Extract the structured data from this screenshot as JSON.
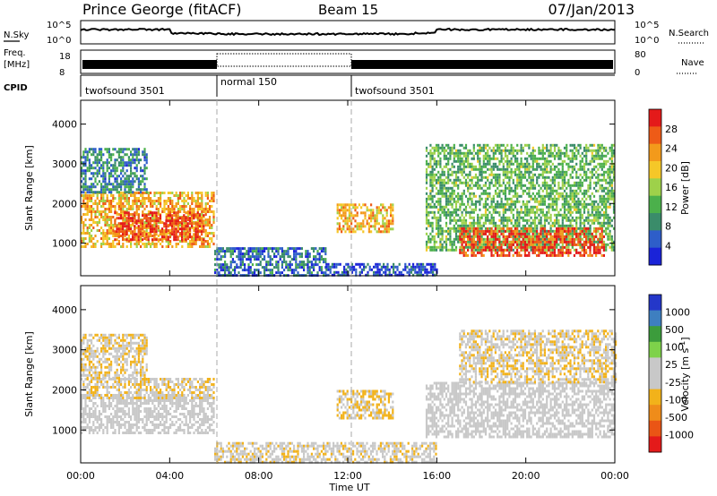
{
  "header": {
    "title": "Prince George (fitACF)",
    "beam": "Beam 15",
    "date": "07/Jan/2013"
  },
  "top_panels": {
    "nsky_label": "N.Sky",
    "nsky_tick_top": "10^5",
    "nsky_tick_bottom": "10^0",
    "nsearch_label": "N.Search",
    "freq_label_line1": "Freq.",
    "freq_label_line2": "[MHz]",
    "freq_ticks": [
      "18",
      "8"
    ],
    "nave_label": "Nave",
    "nave_ticks": [
      "80",
      "0"
    ],
    "cpid_label": "CPID",
    "cpid_segments": [
      {
        "label": "twofsound 3501",
        "start_hour": 0,
        "end_hour": 6
      },
      {
        "label": "normal 150",
        "start_hour": 6,
        "end_hour": 12
      },
      {
        "label": "twofsound 3501",
        "start_hour": 12,
        "end_hour": 24
      }
    ]
  },
  "colors": {
    "power": [
      "#1a23d8",
      "#2e5ec9",
      "#3a8c6a",
      "#4bb04b",
      "#9ed14a",
      "#f5c728",
      "#f39a1b",
      "#ee5b17",
      "#e41a1a"
    ],
    "velocity": [
      "#2437c9",
      "#3e7fc0",
      "#3c9c3c",
      "#7ed24a",
      "#c8c8c8",
      "#c8c8c8",
      "#f2b21a",
      "#ef8c1a",
      "#ea5515",
      "#e41a1a"
    ]
  },
  "chart_data": [
    {
      "type": "heatmap",
      "title": "",
      "xlabel": "Time UT",
      "ylabel": "Slant Range [km]",
      "xlim": [
        0,
        24
      ],
      "ylim": [
        180,
        4600
      ],
      "x_ticks": [
        "00:00",
        "04:00",
        "08:00",
        "12:00",
        "16:00",
        "20:00",
        "00:00"
      ],
      "y_ticks": [
        1000,
        2000,
        3000,
        4000
      ],
      "colorbar": {
        "label": "Power [dB]",
        "ticks": [
          "4",
          "8",
          "12",
          "16",
          "20",
          "24",
          "28"
        ],
        "range": [
          0,
          30
        ]
      },
      "echo_regions": [
        {
          "x": [
            0,
            6
          ],
          "y": [
            900,
            2300
          ],
          "value": 20
        },
        {
          "x": [
            1.5,
            5.5
          ],
          "y": [
            1100,
            1800
          ],
          "value": 26
        },
        {
          "x": [
            0,
            3
          ],
          "y": [
            2300,
            3400
          ],
          "value": 8
        },
        {
          "x": [
            6,
            11
          ],
          "y": [
            200,
            900
          ],
          "value": 6
        },
        {
          "x": [
            11,
            16
          ],
          "y": [
            200,
            500
          ],
          "value": 4
        },
        {
          "x": [
            11.5,
            14
          ],
          "y": [
            1300,
            2000
          ],
          "value": 20
        },
        {
          "x": [
            15.5,
            24
          ],
          "y": [
            800,
            3500
          ],
          "value": 12
        },
        {
          "x": [
            17,
            23.5
          ],
          "y": [
            700,
            1400
          ],
          "value": 26
        }
      ]
    },
    {
      "type": "heatmap",
      "title": "",
      "xlabel": "Time UT",
      "ylabel": "Slant Range [km]",
      "xlim": [
        0,
        24
      ],
      "ylim": [
        180,
        4600
      ],
      "x_ticks": [
        "00:00",
        "04:00",
        "08:00",
        "12:00",
        "16:00",
        "20:00",
        "00:00"
      ],
      "y_ticks": [
        1000,
        2000,
        3000,
        4000
      ],
      "colorbar": {
        "label": "Velocity [m s^-1]",
        "ticks": [
          "1000",
          "500",
          "100",
          "25",
          "-25",
          "-100",
          "-500",
          "-1000"
        ],
        "range": [
          -1000,
          1000
        ]
      },
      "echo_regions": [
        {
          "x": [
            0,
            6
          ],
          "y": [
            900,
            1900
          ],
          "value": 0
        },
        {
          "x": [
            0,
            6
          ],
          "y": [
            1800,
            2300
          ],
          "value": -150
        },
        {
          "x": [
            0,
            3
          ],
          "y": [
            2300,
            3400
          ],
          "value": -150
        },
        {
          "x": [
            6,
            16
          ],
          "y": [
            200,
            700
          ],
          "value": -100
        },
        {
          "x": [
            11.5,
            14
          ],
          "y": [
            1300,
            2000
          ],
          "value": -200
        },
        {
          "x": [
            15.5,
            24
          ],
          "y": [
            800,
            2200
          ],
          "value": 0
        },
        {
          "x": [
            17,
            24
          ],
          "y": [
            2200,
            3500
          ],
          "value": -150
        }
      ]
    }
  ]
}
